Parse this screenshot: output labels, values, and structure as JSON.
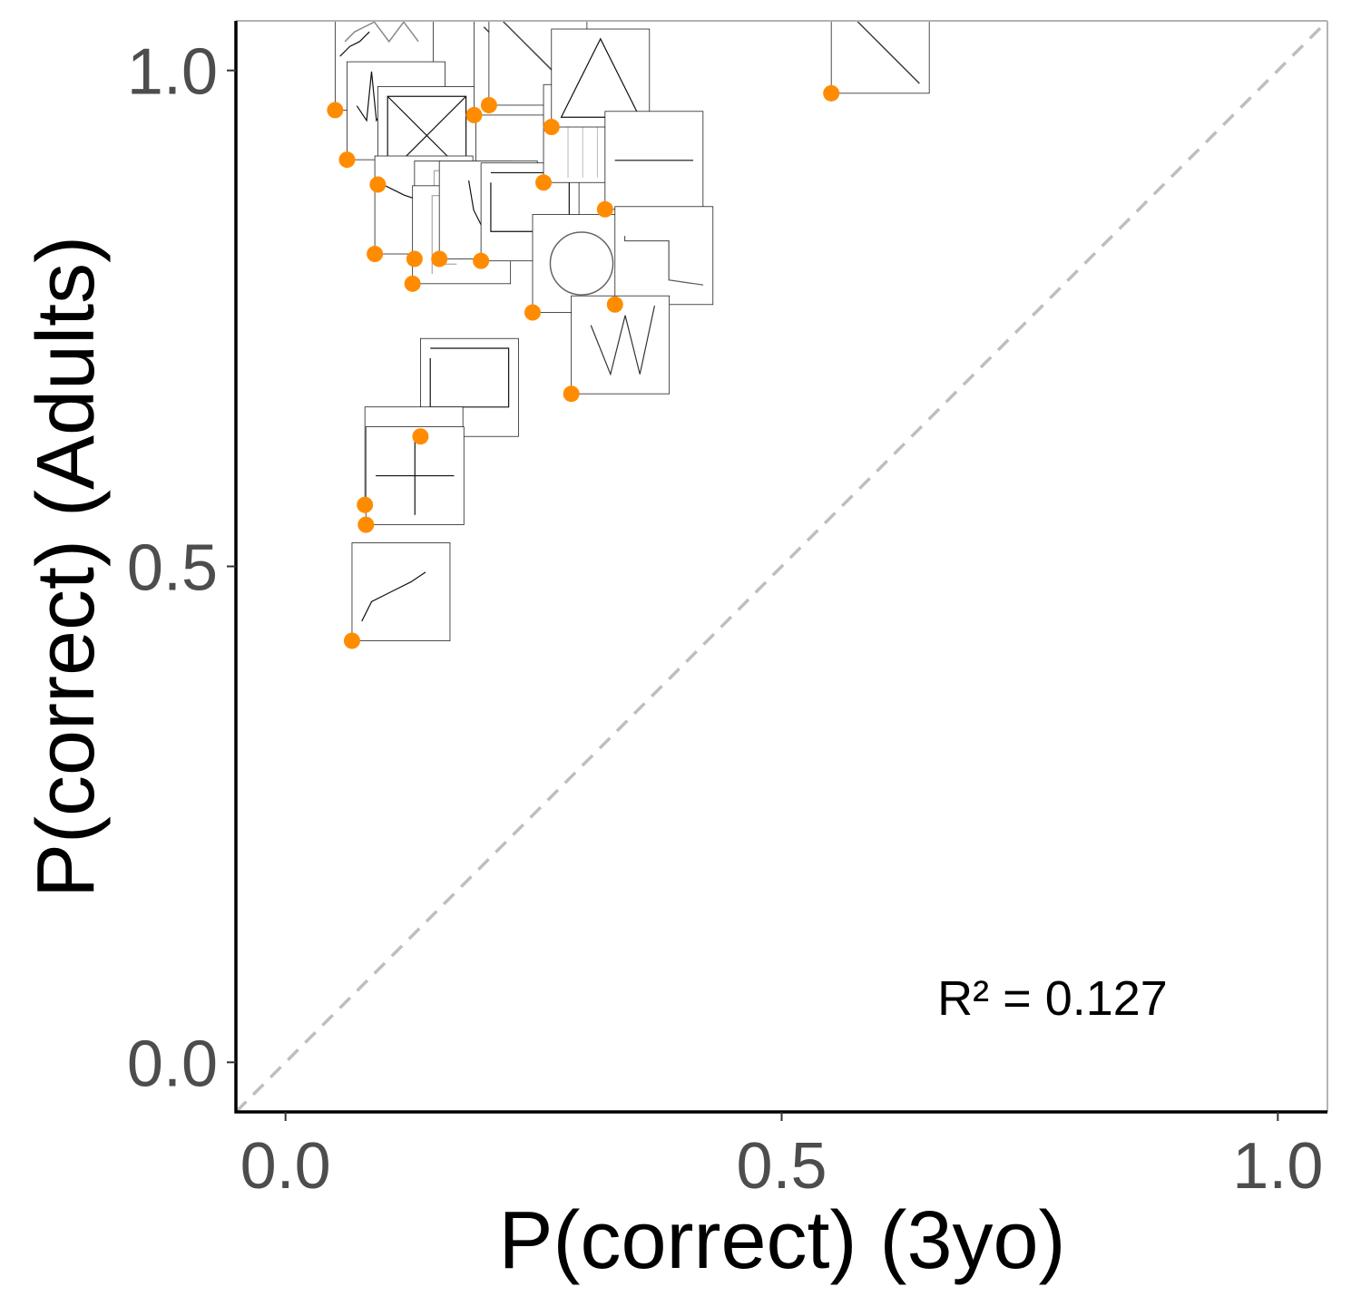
{
  "chart_data": {
    "type": "scatter",
    "title": "",
    "xlabel": "P(correct)  (3yo)",
    "ylabel": "P(correct)  (Adults)",
    "xlim": [
      -0.05,
      1.05
    ],
    "ylim": [
      -0.05,
      1.05
    ],
    "xticks": [
      "0.0",
      "0.5",
      "1.0"
    ],
    "yticks": [
      "0.0",
      "0.5",
      "1.0"
    ],
    "xtick_values": [
      0.0,
      0.5,
      1.0
    ],
    "ytick_values": [
      0.0,
      0.5,
      1.0
    ],
    "reference_line": {
      "slope": 1,
      "intercept": 0,
      "style": "dashed",
      "color": "#bebebe"
    },
    "annotation": "R² = 0.127",
    "grid": false,
    "point_color": "#ff8c00",
    "points": [
      {
        "x": 0.05,
        "y": 0.96,
        "glyph": "zigzag"
      },
      {
        "x": 0.062,
        "y": 0.91,
        "glyph": "wave"
      },
      {
        "x": 0.093,
        "y": 0.885,
        "glyph": "x-box"
      },
      {
        "x": 0.09,
        "y": 0.815,
        "glyph": "line"
      },
      {
        "x": 0.13,
        "y": 0.81,
        "glyph": "square-spiral"
      },
      {
        "x": 0.128,
        "y": 0.785,
        "glyph": "square-spiral"
      },
      {
        "x": 0.155,
        "y": 0.81,
        "glyph": "v-shape"
      },
      {
        "x": 0.19,
        "y": 0.955,
        "glyph": "diagonal"
      },
      {
        "x": 0.205,
        "y": 0.965,
        "glyph": "diagonal"
      },
      {
        "x": 0.197,
        "y": 0.808,
        "glyph": "square"
      },
      {
        "x": 0.26,
        "y": 0.887,
        "glyph": "bars"
      },
      {
        "x": 0.268,
        "y": 0.943,
        "glyph": "triangle"
      },
      {
        "x": 0.249,
        "y": 0.756,
        "glyph": "spiral"
      },
      {
        "x": 0.322,
        "y": 0.86,
        "glyph": "horizontal-line"
      },
      {
        "x": 0.332,
        "y": 0.764,
        "glyph": "corner"
      },
      {
        "x": 0.288,
        "y": 0.674,
        "glyph": "w-shape"
      },
      {
        "x": 0.136,
        "y": 0.631,
        "glyph": "square"
      },
      {
        "x": 0.08,
        "y": 0.562,
        "glyph": "line"
      },
      {
        "x": 0.081,
        "y": 0.542,
        "glyph": "cross"
      },
      {
        "x": 0.067,
        "y": 0.425,
        "glyph": "chain"
      },
      {
        "x": 0.55,
        "y": 0.977,
        "glyph": "diagonal"
      }
    ]
  }
}
